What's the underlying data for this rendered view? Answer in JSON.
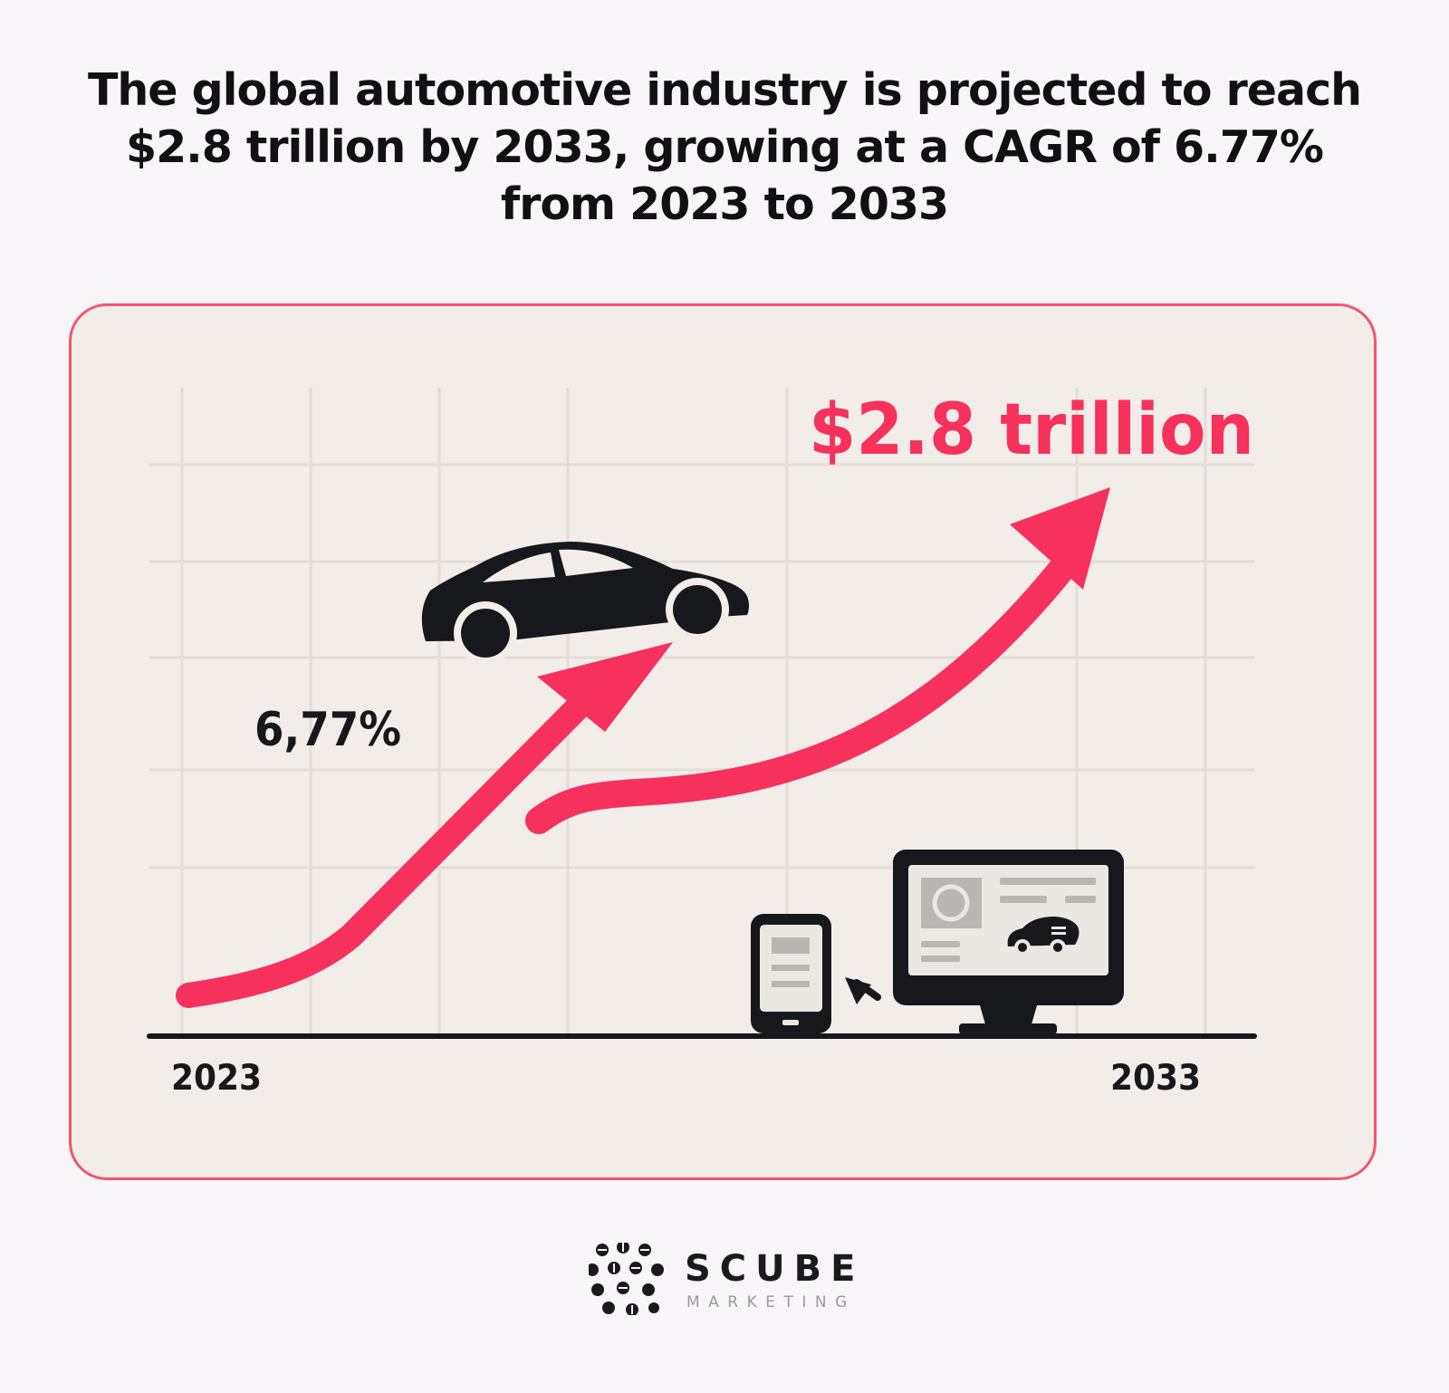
{
  "headline": "The global automotive industry is projected to reach $2.8 trillion by 2033, growing at a CAGR of 6.77% from 2023 to 2033",
  "colors": {
    "accent": "#f5315c",
    "border": "#f0566f",
    "ink": "#17181c",
    "grid": "#e2ddd6",
    "card_bg": "#f2ede8"
  },
  "chart_data": {
    "type": "line",
    "x": [
      2023,
      2033
    ],
    "start_label": "2023",
    "end_label": "2033",
    "cagr_label": "6,77%",
    "value_label": "$2.8 trillion",
    "cagr_percent": 6.77,
    "end_value_trillion_usd": 2.8,
    "grid": true,
    "legend": "none"
  },
  "brand": {
    "name": "SCUBE",
    "tagline": "MARKETING"
  }
}
